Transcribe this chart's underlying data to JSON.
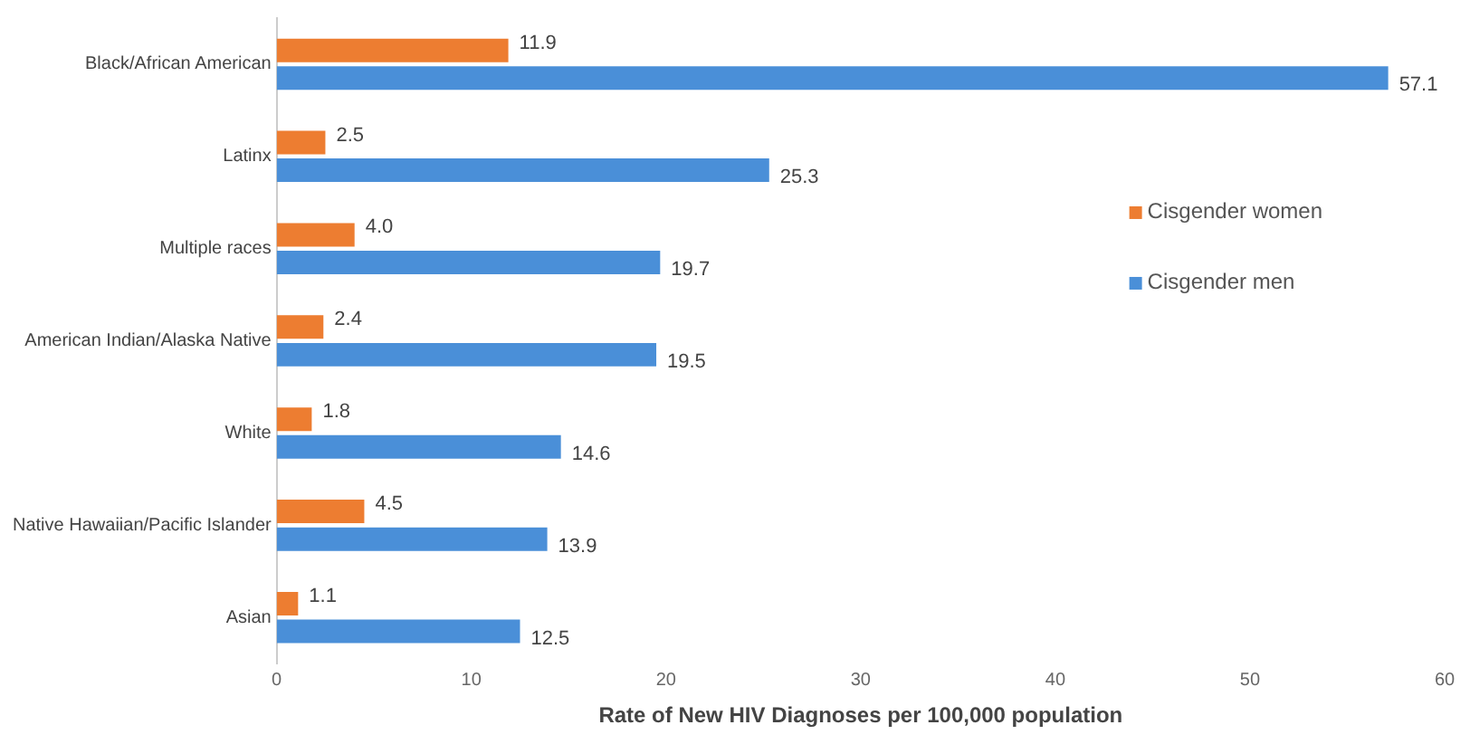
{
  "chart_data": {
    "type": "bar",
    "orientation": "horizontal",
    "xlabel": "Rate of New HIV Diagnoses per 100,000 population",
    "categories": [
      "Black/African American",
      "Latinx",
      "Multiple races",
      "American Indian/Alaska Native",
      "White",
      "Native Hawaiian/Pacific Islander",
      "Asian"
    ],
    "series": [
      {
        "name": "Cisgender women",
        "color": "#ed7d31",
        "values": [
          11.9,
          2.5,
          4.0,
          2.4,
          1.8,
          4.5,
          1.1
        ],
        "value_labels": [
          "11.9",
          "2.5",
          "4.0",
          "2.4",
          "1.8",
          "4.5",
          "1.1"
        ]
      },
      {
        "name": "Cisgender men",
        "color": "#4a8fd8",
        "values": [
          57.1,
          25.3,
          19.7,
          19.5,
          14.6,
          13.9,
          12.5
        ],
        "value_labels": [
          "57.1",
          "25.3",
          "19.7",
          "19.5",
          "14.6",
          "13.9",
          "12.5"
        ]
      }
    ],
    "xlim": [
      0,
      60
    ],
    "xticks": [
      0,
      10,
      20,
      30,
      40,
      50,
      60
    ],
    "grid": false,
    "legend": "right"
  }
}
